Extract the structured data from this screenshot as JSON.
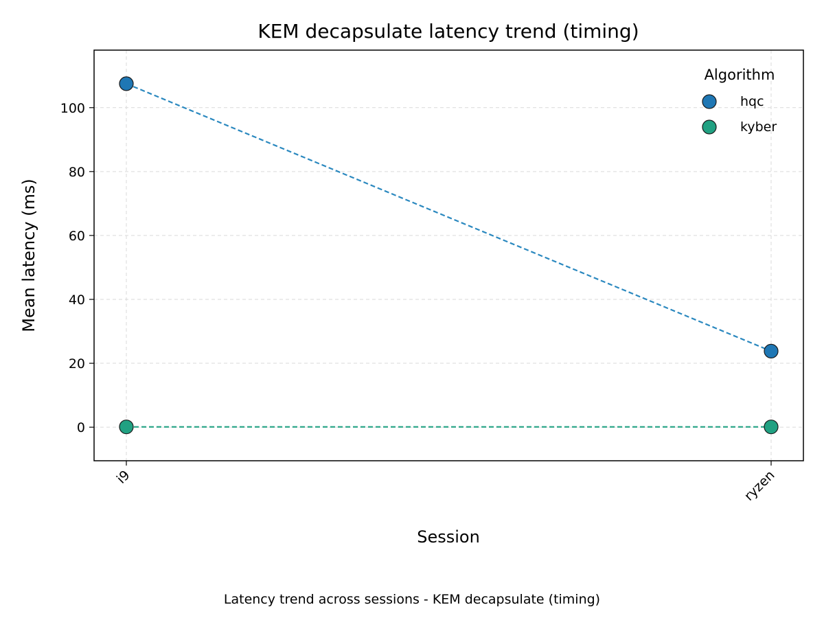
{
  "chart_data": {
    "type": "line",
    "title": "KEM decapsulate latency trend (timing)",
    "xlabel": "Session",
    "ylabel": "Mean latency (ms)",
    "categories": [
      "i9",
      "ryzen"
    ],
    "ylim": [
      -10.5,
      118
    ],
    "yticks": [
      0,
      20,
      40,
      60,
      80,
      100
    ],
    "grid": true,
    "legend": {
      "title": "Algorithm",
      "position": "top-right"
    },
    "series": [
      {
        "name": "hqc",
        "values": [
          107.5,
          23.8
        ],
        "color": "#1f77b4",
        "line_color": "#2a88bf"
      },
      {
        "name": "kyber",
        "values": [
          0.1,
          0.1
        ],
        "color": "#21a182",
        "line_color": "#21a182"
      }
    ]
  },
  "caption": "Latency trend across sessions - KEM decapsulate (timing)"
}
